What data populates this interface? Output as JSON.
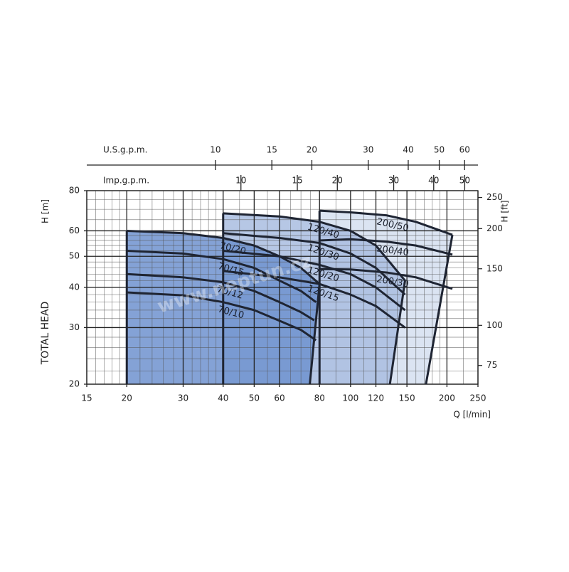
{
  "chart_data": {
    "type": "line",
    "x_label": "Q [l/min]",
    "y_label": "H [m]",
    "y_title": "TOTAL HEAD",
    "y2_label": "H [ft]",
    "watermark": "www.neptun.cz",
    "log_x": true,
    "log_y": true,
    "xlim": [
      15,
      250
    ],
    "xticks": [
      15,
      20,
      30,
      40,
      50,
      60,
      80,
      100,
      120,
      150,
      200,
      250
    ],
    "ylim": [
      20,
      80
    ],
    "yticks": [
      20,
      30,
      40,
      50,
      60,
      80
    ],
    "y2lim": [
      65.6,
      262.5
    ],
    "y2ticks": [
      75,
      100,
      150,
      200,
      250
    ],
    "x_minor_grid": [
      16,
      17,
      18,
      19,
      22,
      24,
      26,
      28,
      32,
      34,
      36,
      38,
      45,
      55,
      65,
      70,
      75,
      90,
      110,
      130,
      140,
      160,
      170,
      180,
      190,
      225
    ],
    "y_minor_grid": [
      22,
      24,
      26,
      28,
      32,
      34,
      36,
      38,
      42,
      44,
      46,
      48,
      52,
      54,
      56,
      58,
      65,
      70,
      75
    ],
    "top_axes": [
      {
        "label": "U.S.g.p.m.",
        "lim": [
          3.963,
          66.05
        ],
        "ticks": [
          10,
          15,
          20,
          30,
          40,
          50,
          60
        ]
      },
      {
        "label": "Imp.g.p.m.",
        "lim": [
          3.3,
          54.99
        ],
        "ticks": [
          10,
          15,
          20,
          30,
          40,
          50
        ]
      }
    ],
    "curve_color": "#1f2533",
    "families": [
      {
        "color": "#d5dff0",
        "bottom_q": 172,
        "curves": [
          {
            "label": "200/50",
            "q": [
              80,
              100,
              130,
              160,
              208
            ],
            "h": [
              69.3,
              68.5,
              67,
              64,
              58.3
            ]
          },
          {
            "label": "200/40",
            "q": [
              80,
              100,
              130,
              160,
              208
            ],
            "h": [
              56,
              56.5,
              55.5,
              54,
              50.6
            ]
          },
          {
            "label": "200/30",
            "q": [
              80,
              100,
              130,
              160,
              208
            ],
            "h": [
              45.6,
              45.5,
              44.5,
              43,
              39.6
            ]
          }
        ]
      },
      {
        "color": "#a9bde0",
        "bottom_q": 132.7,
        "curves": [
          {
            "label": "120/40",
            "q": [
              40,
              60,
              80,
              100,
              120,
              148
            ],
            "h": [
              68,
              66.5,
              64,
              60,
              54,
              42
            ]
          },
          {
            "label": "120/30",
            "q": [
              40,
              60,
              80,
              100,
              120,
              148
            ],
            "h": [
              59,
              57,
              55,
              51,
              46,
              38
            ]
          },
          {
            "label": "120/20",
            "q": [
              40,
              60,
              80,
              100,
              120,
              148
            ],
            "h": [
              52,
              50,
              47,
              44,
              40,
              34
            ]
          },
          {
            "label": "120/15",
            "q": [
              40,
              60,
              80,
              100,
              120,
              148
            ],
            "h": [
              45,
              43,
              41,
              38,
              35,
              30
            ]
          }
        ]
      },
      {
        "color": "#6f92cf",
        "bottom_q": 74.6,
        "curves": [
          {
            "label": "70/20",
            "q": [
              20,
              30,
              40,
              50,
              60,
              70,
              80
            ],
            "h": [
              60,
              59,
              57,
              54,
              50,
              46,
              41
            ]
          },
          {
            "label": "70/15",
            "q": [
              20,
              30,
              40,
              50,
              60,
              70,
              78
            ],
            "h": [
              52,
              51,
              49,
              46,
              42,
              39,
              36
            ]
          },
          {
            "label": "70/12",
            "q": [
              20,
              30,
              40,
              50,
              60,
              70,
              77
            ],
            "h": [
              44,
              43,
              41.5,
              39,
              36,
              33.5,
              31.6
            ]
          },
          {
            "label": "70/10",
            "q": [
              20,
              30,
              40,
              50,
              60,
              70,
              78
            ],
            "h": [
              38.6,
              37.8,
              36,
              34,
              31.5,
              29.5,
              27.4
            ]
          }
        ]
      }
    ]
  }
}
